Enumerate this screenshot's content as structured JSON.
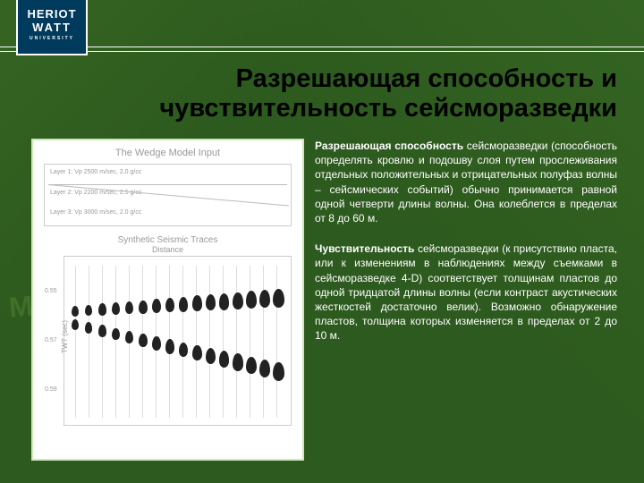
{
  "logo": {
    "line1": "HERIOT",
    "line2": "WATT",
    "line3": "UNIVERSITY"
  },
  "title": "Разрешающая способность и чувствительность сейсморазведки",
  "figure": {
    "title": "The Wedge Model Input",
    "layers": {
      "l1": "Layer 1: Vp   2500 m/sec, 2.0 g/cc",
      "l2": "Layer 2: Vp   2200 m/sec, 2.5 g/cc",
      "l3": "Layer 3: Vp   3000 m/sec, 2.0 g/cc"
    },
    "syn_title": "Synthetic Seismic Traces",
    "dist_label": "Distance",
    "ylabel": "TWT (sec)",
    "yticks": {
      "t1": "0.55",
      "t2": "0.57",
      "t3": "0.59"
    }
  },
  "watermark": "Moil",
  "text": {
    "p1_bold": "Разрешающая способность",
    "p1_rest": " сейсморазведки (способность определять кровлю и подошву слоя путем прослеживания отдельных положительных и отрицательных полуфаз волны – сейсмических событий) обычно принимается равной одной четверти длины волны. Она колеблется в пределах от 8 до 60 м.",
    "p2_bold": "Чувствительность",
    "p2_rest": " сейсморазведки (к присутствию пласта, или к изменениям в наблюдениях между съемками в сейсморазведке 4-D) соответствует толщинам пластов до одной тридцатой длины волны (если контраст акустических жесткостей достаточно велик). Возможно обнаружение пластов, толщина которых изменяется в пределах от 2 до 10 м."
  },
  "colors": {
    "bg": "#2d5a1e",
    "logo_bg": "#003a5d",
    "figure_border": "#cfe8b8"
  }
}
